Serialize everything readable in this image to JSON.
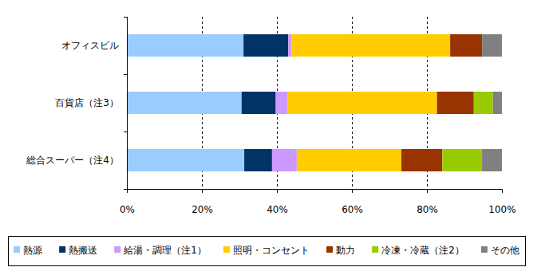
{
  "chart_data": {
    "type": "bar",
    "orientation": "horizontal",
    "stacked": true,
    "grid": true,
    "legend": "bottom",
    "categories": [
      "オフィスビル",
      "百貨店（注3）",
      "総合スーパー（注4）"
    ],
    "xlim": [
      0,
      100
    ],
    "xticks": [
      {
        "value": 0,
        "label": "0%"
      },
      {
        "value": 20,
        "label": "20%"
      },
      {
        "value": 40,
        "label": "40%"
      },
      {
        "value": 60,
        "label": "60%"
      },
      {
        "value": 80,
        "label": "80%"
      },
      {
        "value": 100,
        "label": "100%"
      }
    ],
    "series": [
      {
        "name": "熱源",
        "color": "#99ccff",
        "values": [
          31.1,
          30.6,
          31.3
        ]
      },
      {
        "name": "熱搬送",
        "color": "#003366",
        "values": [
          11.9,
          9.1,
          7.4
        ]
      },
      {
        "name": "給湯・調理（注1）",
        "color": "#cc99ff",
        "values": [
          0.9,
          3.2,
          6.6
        ]
      },
      {
        "name": "照明・コンセント",
        "color": "#ffcc00",
        "values": [
          42.3,
          39.8,
          27.9
        ]
      },
      {
        "name": "動力",
        "color": "#993300",
        "values": [
          8.5,
          9.8,
          10.9
        ]
      },
      {
        "name": "冷凍・冷蔵（注2）",
        "color": "#99cc00",
        "values": [
          0,
          5.1,
          10.6
        ]
      },
      {
        "name": "その他",
        "color": "#808080",
        "values": [
          5.3,
          2.4,
          5.3
        ]
      }
    ]
  }
}
